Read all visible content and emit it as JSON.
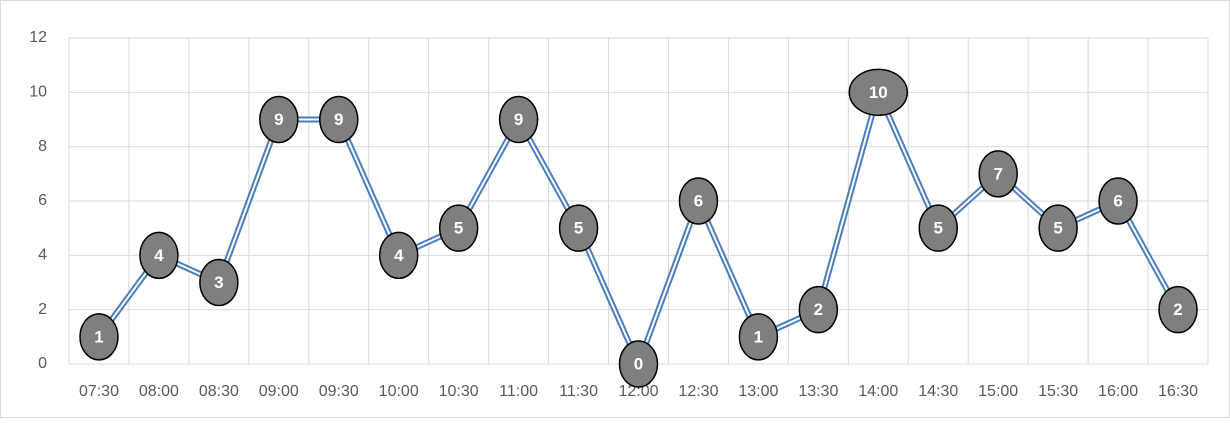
{
  "chart_data": {
    "type": "line",
    "categories": [
      "07:30",
      "08:00",
      "08:30",
      "09:00",
      "09:30",
      "10:00",
      "10:30",
      "11:00",
      "11:30",
      "12:00",
      "12:30",
      "13:00",
      "13:30",
      "14:00",
      "14:30",
      "15:00",
      "15:30",
      "16:00",
      "16:30"
    ],
    "values": [
      1,
      4,
      3,
      9,
      9,
      4,
      5,
      9,
      5,
      0,
      6,
      1,
      2,
      10,
      5,
      7,
      5,
      6,
      2
    ],
    "color": "#4a7ebb",
    "ylim": [
      0,
      12
    ],
    "yticks": [
      0,
      2,
      4,
      6,
      8,
      10,
      12
    ],
    "grid": true
  }
}
